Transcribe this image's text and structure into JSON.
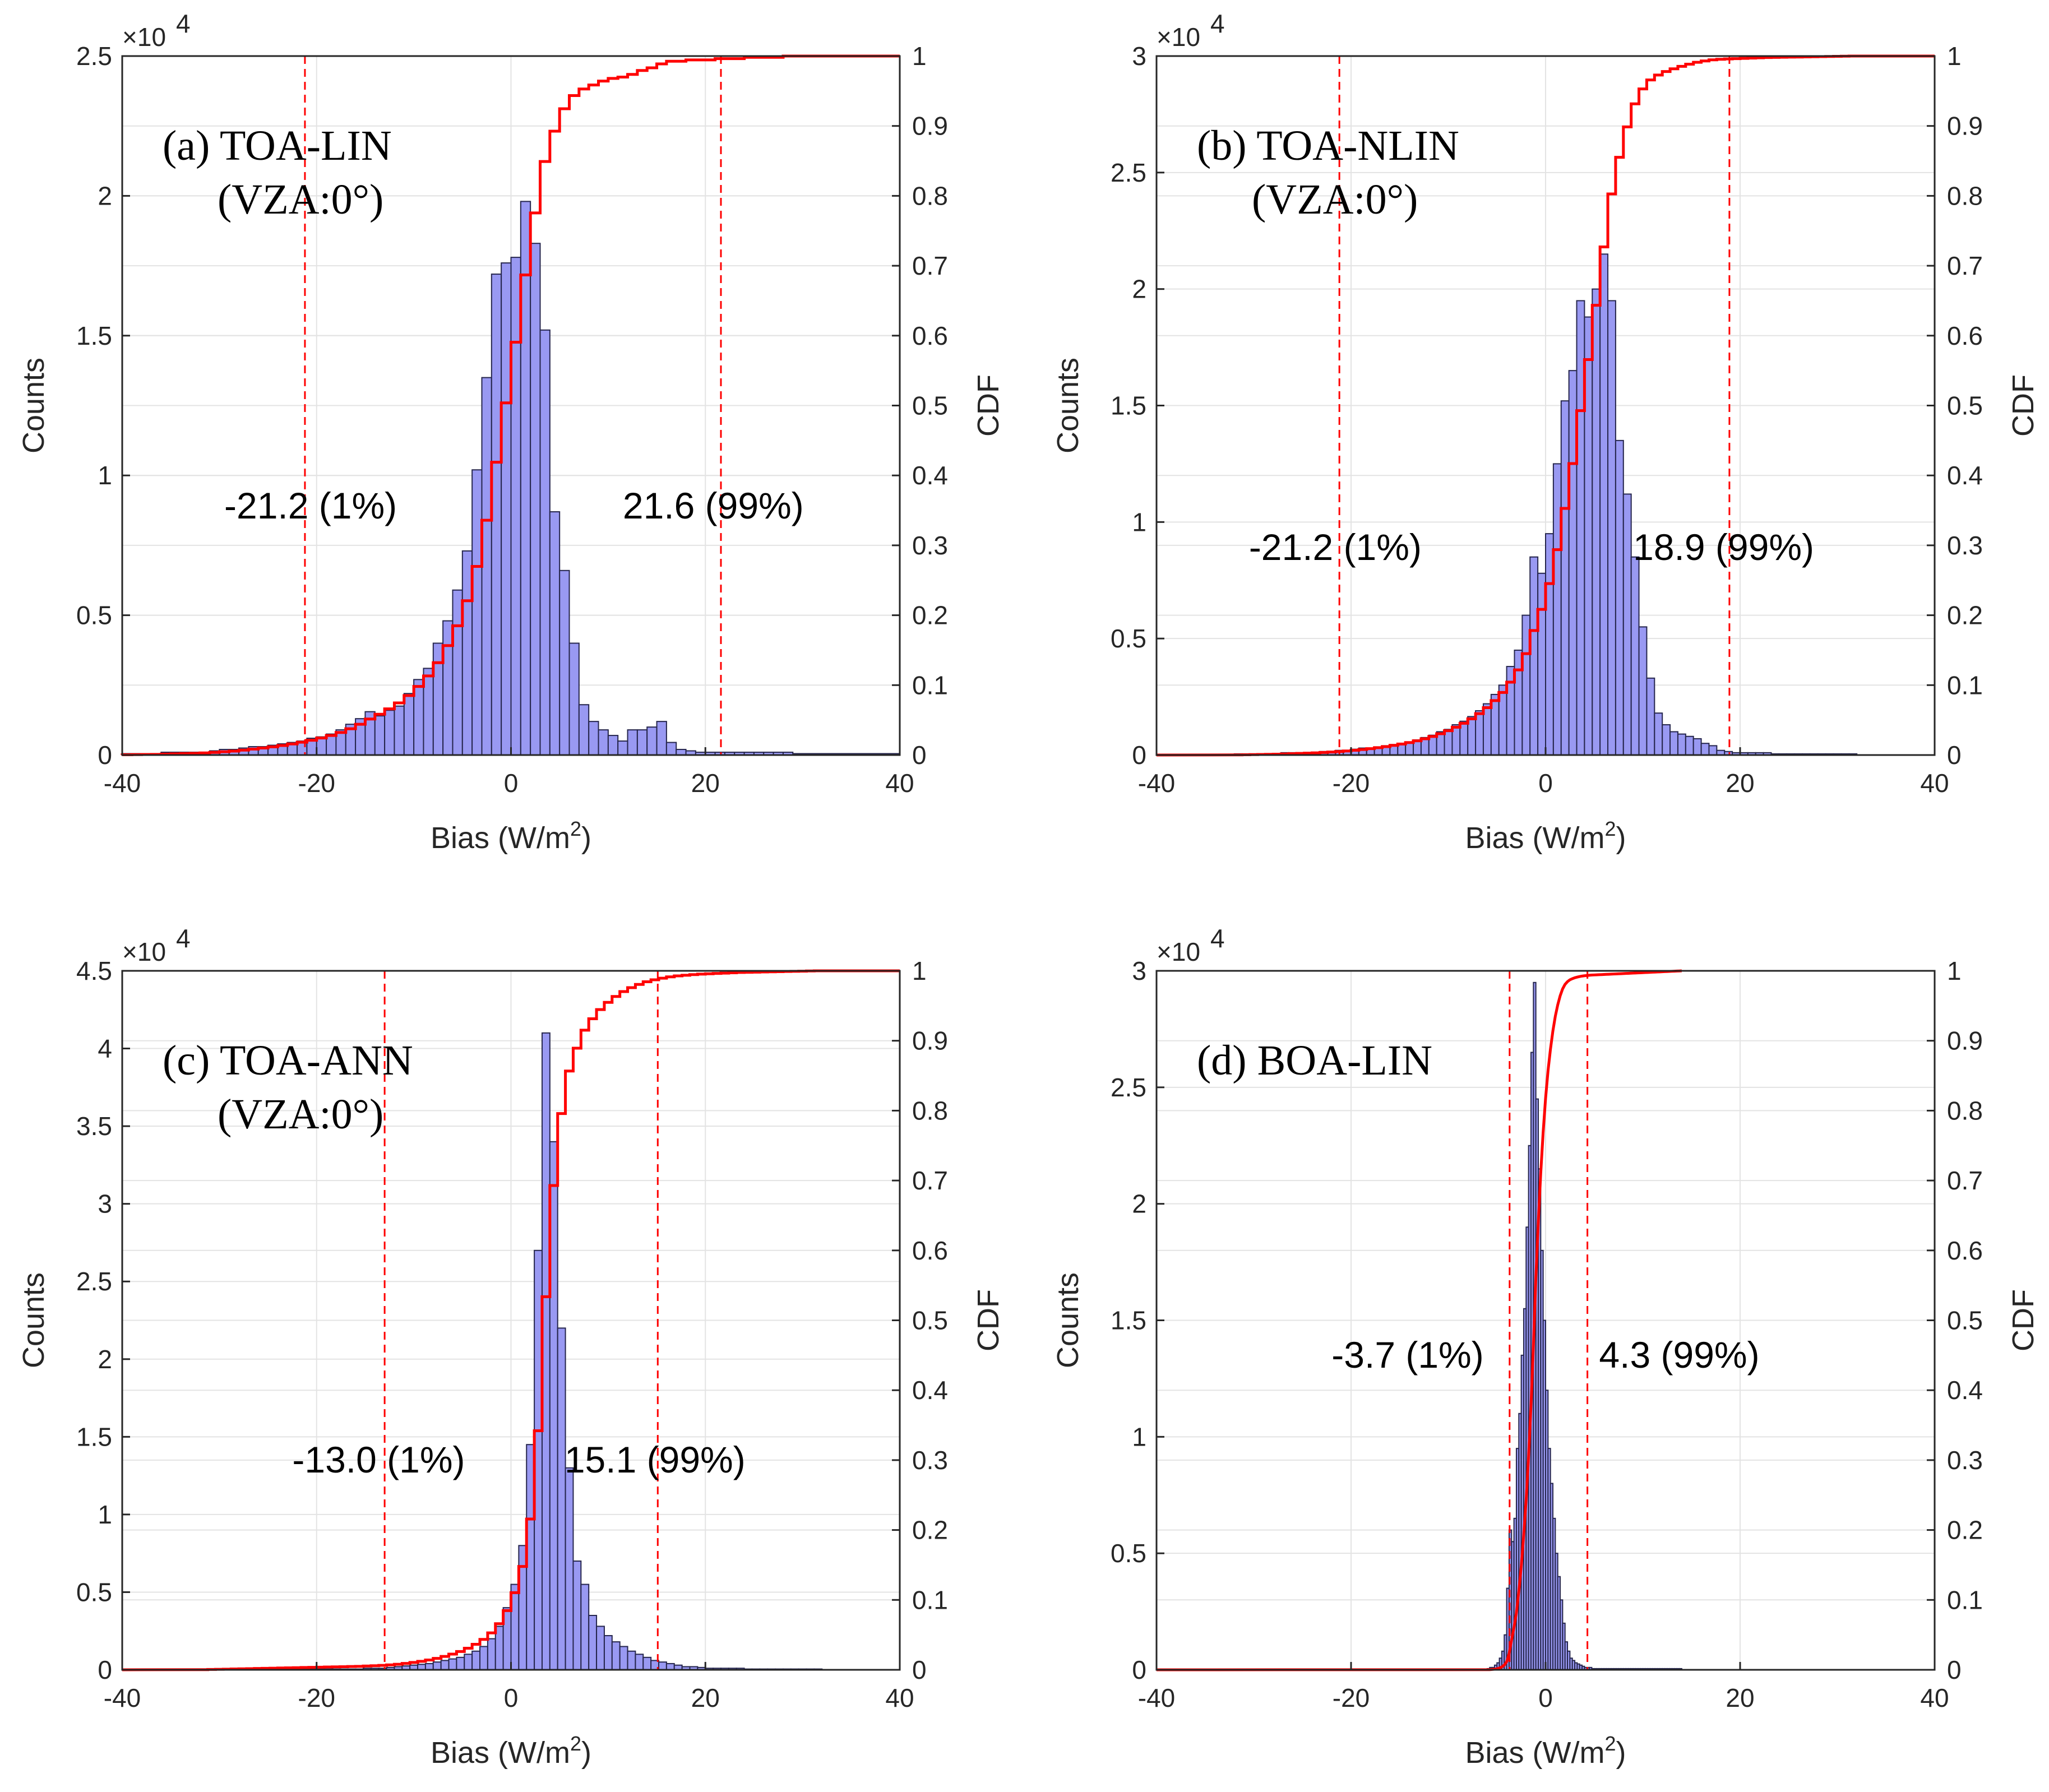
{
  "colors": {
    "bar_fill": "#9999f2",
    "bar_edge": "#26264d",
    "cdf": "#ff0000",
    "grid": "#e3e3e3",
    "axis": "#262626"
  },
  "chart_data": [
    {
      "type": "bar",
      "panel_title": [
        "(a) TOA-LIN",
        "(VZA:0°)"
      ],
      "xlabel": "Bias (W/m",
      "xlabel_sup": "2",
      "xlabel_close": ")",
      "ylabel": "Counts",
      "y2label": "CDF",
      "exponent_base": "×10",
      "exponent_power": "4",
      "xlim": [
        -40,
        40
      ],
      "xticks": [
        -40,
        -20,
        0,
        20,
        40
      ],
      "ylim": [
        0,
        2.5
      ],
      "yticks": [
        0,
        0.5,
        1,
        1.5,
        2,
        2.5
      ],
      "y2lim": [
        0,
        1
      ],
      "y2ticks": [
        0,
        0.1,
        0.2,
        0.3,
        0.4,
        0.5,
        0.6,
        0.7,
        0.8,
        0.9,
        1
      ],
      "bin_width": 1,
      "bin_centers": [
        -40.5,
        -39.5,
        -38.5,
        -37.5,
        -36.5,
        -35.5,
        -34.5,
        -33.5,
        -32.5,
        -31.5,
        -30.5,
        -29.5,
        -28.5,
        -27.5,
        -26.5,
        -25.5,
        -24.5,
        -23.5,
        -22.5,
        -21.5,
        -20.5,
        -19.5,
        -18.5,
        -17.5,
        -16.5,
        -15.5,
        -14.5,
        -13.5,
        -12.5,
        -11.5,
        -10.5,
        -9.5,
        -8.5,
        -7.5,
        -6.5,
        -5.5,
        -4.5,
        -3.5,
        -2.5,
        -1.5,
        -0.5,
        0.5,
        1.5,
        2.5,
        3.5,
        4.5,
        5.5,
        6.5,
        7.5,
        8.5,
        9.5,
        10.5,
        11.5,
        12.5,
        13.5,
        14.5,
        15.5,
        16.5,
        17.5,
        18.5,
        19.5,
        20.5,
        21.5,
        22.5,
        23.5,
        24.5,
        25.5,
        26.5,
        27.5,
        28.5,
        29.5,
        30.5,
        31.5,
        32.5,
        33.5,
        34.5,
        35.5,
        36.5,
        37.5,
        38.5,
        39.5
      ],
      "counts": [
        0.005,
        0.005,
        0.005,
        0.005,
        0.005,
        0.01,
        0.01,
        0.01,
        0.01,
        0.01,
        0.015,
        0.02,
        0.02,
        0.025,
        0.03,
        0.03,
        0.035,
        0.04,
        0.045,
        0.05,
        0.06,
        0.065,
        0.075,
        0.09,
        0.11,
        0.13,
        0.155,
        0.14,
        0.16,
        0.175,
        0.22,
        0.27,
        0.31,
        0.4,
        0.48,
        0.59,
        0.73,
        1.02,
        1.35,
        1.72,
        1.76,
        1.78,
        1.98,
        1.83,
        1.52,
        0.87,
        0.66,
        0.4,
        0.18,
        0.12,
        0.09,
        0.07,
        0.05,
        0.09,
        0.09,
        0.1,
        0.12,
        0.045,
        0.02,
        0.015,
        0.01,
        0.01,
        0.01,
        0.01,
        0.01,
        0.01,
        0.01,
        0.01,
        0.01,
        0.01,
        0.005,
        0.005,
        0.005,
        0.005,
        0.005,
        0.005,
        0.005,
        0.005,
        0.005,
        0.005,
        0.005
      ],
      "cdf": [
        0.0001,
        0.0002,
        0.0003,
        0.0004,
        0.0005,
        0.0007,
        0.0009,
        0.0011,
        0.0013,
        0.0016,
        0.002,
        0.0025,
        0.003,
        0.0037,
        0.0045,
        0.0053,
        0.0062,
        0.0072,
        0.0084,
        0.0097,
        0.0112,
        0.0129,
        0.0148,
        0.0171,
        0.0199,
        0.0233,
        0.0273,
        0.0309,
        0.035,
        0.0395,
        0.0451,
        0.052,
        0.06,
        0.07,
        0.083,
        0.098,
        0.117,
        0.143,
        0.178,
        0.222,
        0.267,
        0.313,
        0.364,
        0.411,
        0.45,
        0.473,
        0.49,
        0.5,
        0.505,
        0.508,
        0.511,
        0.513,
        0.514,
        0.516,
        0.519,
        0.521,
        0.524,
        0.526,
        0.526,
        0.527,
        0.527,
        0.527,
        0.528,
        0.528,
        0.528,
        0.529,
        0.529,
        0.529,
        0.529,
        0.53,
        0.53,
        0.53,
        0.53,
        0.53,
        0.53,
        0.53,
        0.53,
        0.53,
        0.53,
        0.53,
        0.53
      ],
      "cdf_scale": 1.887,
      "vlines": [
        -21.2,
        21.6
      ],
      "annotations": [
        {
          "text": "-21.2 (1%)",
          "x": -29.5,
          "y": 0.89
        },
        {
          "text": "21.6 (99%)",
          "x": 11.5,
          "y": 0.89
        }
      ]
    },
    {
      "type": "bar",
      "panel_title": [
        "(b) TOA-NLIN",
        "(VZA:0°)"
      ],
      "xlabel": "Bias (W/m",
      "xlabel_sup": "2",
      "xlabel_close": ")",
      "ylabel": "Counts",
      "y2label": "CDF",
      "exponent_base": "×10",
      "exponent_power": "4",
      "xlim": [
        -40,
        40
      ],
      "xticks": [
        -40,
        -20,
        0,
        20,
        40
      ],
      "ylim": [
        0,
        3
      ],
      "yticks": [
        0,
        0.5,
        1,
        1.5,
        2,
        2.5,
        3
      ],
      "y2lim": [
        0,
        1
      ],
      "y2ticks": [
        0,
        0.1,
        0.2,
        0.3,
        0.4,
        0.5,
        0.6,
        0.7,
        0.8,
        0.9,
        1
      ],
      "bin_width": 0.8,
      "bin_centers": [],
      "counts": [
        0.005,
        0.005,
        0.005,
        0.005,
        0.005,
        0.005,
        0.01,
        0.01,
        0.01,
        0.01,
        0.01,
        0.015,
        0.015,
        0.02,
        0.02,
        0.025,
        0.03,
        0.03,
        0.035,
        0.04,
        0.045,
        0.05,
        0.055,
        0.065,
        0.075,
        0.085,
        0.1,
        0.11,
        0.13,
        0.145,
        0.165,
        0.19,
        0.22,
        0.26,
        0.3,
        0.38,
        0.45,
        0.6,
        0.85,
        0.78,
        0.95,
        1.25,
        1.52,
        1.65,
        1.95,
        1.88,
        2.0,
        2.15,
        1.95,
        1.35,
        1.12,
        0.85,
        0.55,
        0.33,
        0.18,
        0.13,
        0.1,
        0.09,
        0.08,
        0.07,
        0.05,
        0.04,
        0.02,
        0.015,
        0.01,
        0.01,
        0.01,
        0.01,
        0.01,
        0.005,
        0.005,
        0.005,
        0.005,
        0.005,
        0.005,
        0.005,
        0.005,
        0.005,
        0.005,
        0.005
      ],
      "cdf_mode": "cumsum",
      "vlines": [
        -21.2,
        18.9
      ],
      "annotations": [
        {
          "text": "-21.2 (1%)",
          "x": -30.5,
          "y": 0.89
        },
        {
          "text": "18.9 (99%)",
          "x": 9.0,
          "y": 0.89
        }
      ]
    },
    {
      "type": "bar",
      "panel_title": [
        "(c) TOA-ANN",
        "(VZA:0°)"
      ],
      "xlabel": "Bias (W/m",
      "xlabel_sup": "2",
      "xlabel_close": ")",
      "ylabel": "Counts",
      "y2label": "CDF",
      "exponent_base": "×10",
      "exponent_power": "4",
      "xlim": [
        -40,
        40
      ],
      "xticks": [
        -40,
        -20,
        0,
        20,
        40
      ],
      "ylim": [
        0,
        4.5
      ],
      "yticks": [
        0,
        0.5,
        1,
        1.5,
        2,
        2.5,
        3,
        3.5,
        4,
        4.5
      ],
      "y2lim": [
        0,
        1
      ],
      "y2ticks": [
        0,
        0.1,
        0.2,
        0.3,
        0.4,
        0.5,
        0.6,
        0.7,
        0.8,
        0.9,
        1
      ],
      "bin_width": 0.8,
      "counts": [
        0.005,
        0.005,
        0.005,
        0.005,
        0.005,
        0.005,
        0.005,
        0.005,
        0.005,
        0.005,
        0.005,
        0.005,
        0.005,
        0.005,
        0.005,
        0.005,
        0.005,
        0.005,
        0.005,
        0.005,
        0.005,
        0.01,
        0.01,
        0.01,
        0.015,
        0.02,
        0.025,
        0.03,
        0.035,
        0.04,
        0.05,
        0.06,
        0.07,
        0.08,
        0.1,
        0.12,
        0.15,
        0.2,
        0.28,
        0.4,
        0.55,
        0.8,
        1.45,
        2.7,
        4.1,
        3.4,
        2.2,
        1.3,
        0.7,
        0.55,
        0.35,
        0.28,
        0.22,
        0.18,
        0.15,
        0.12,
        0.1,
        0.08,
        0.06,
        0.05,
        0.04,
        0.03,
        0.02,
        0.02,
        0.015,
        0.01,
        0.01,
        0.01,
        0.01,
        0.01,
        0.005,
        0.005,
        0.005,
        0.005,
        0.005,
        0.005,
        0.005,
        0.005,
        0.005,
        0.005
      ],
      "cdf_mode": "cumsum",
      "vlines": [
        -13.0,
        15.1
      ],
      "annotations": [
        {
          "text": "-13.0 (1%)",
          "x": -22.5,
          "y": 1.35
        },
        {
          "text": "15.1 (99%)",
          "x": 5.5,
          "y": 1.35
        }
      ]
    },
    {
      "type": "bar",
      "panel_title": [
        "(d) BOA-LIN"
      ],
      "xlabel": "Bias (W/m",
      "xlabel_sup": "2",
      "xlabel_close": ")",
      "ylabel": "Counts",
      "y2label": "CDF",
      "exponent_base": "×10",
      "exponent_power": "4",
      "xlim": [
        -40,
        40
      ],
      "xticks": [
        -40,
        -20,
        0,
        20,
        40
      ],
      "ylim": [
        0,
        3
      ],
      "yticks": [
        0,
        0.5,
        1,
        1.5,
        2,
        2.5,
        3
      ],
      "y2lim": [
        0,
        1
      ],
      "y2ticks": [
        0,
        0.1,
        0.2,
        0.3,
        0.4,
        0.5,
        0.6,
        0.7,
        0.8,
        0.9,
        1
      ],
      "bin_width": 0.25,
      "bin_start": -6,
      "counts": [
        0.005,
        0.01,
        0.01,
        0.02,
        0.03,
        0.05,
        0.08,
        0.15,
        0.35,
        0.6,
        0.55,
        0.65,
        0.95,
        1.1,
        1.35,
        1.55,
        1.9,
        2.25,
        2.65,
        2.95,
        2.45,
        2.15,
        1.8,
        1.5,
        1.2,
        0.95,
        0.8,
        0.65,
        0.5,
        0.4,
        0.3,
        0.2,
        0.12,
        0.08,
        0.05,
        0.04,
        0.03,
        0.025,
        0.02,
        0.015,
        0.01,
        0.01,
        0.01,
        0.005,
        0.005,
        0.005,
        0.005,
        0.005,
        0.005,
        0.005,
        0.005,
        0.005,
        0.005,
        0.005,
        0.005,
        0.005,
        0.005,
        0.005,
        0.005,
        0.005,
        0.005,
        0.005,
        0.005,
        0.005,
        0.005,
        0.005,
        0.005,
        0.005,
        0.005,
        0.005,
        0.005,
        0.005,
        0.005,
        0.005,
        0.005,
        0.005,
        0.005,
        0.005,
        0.005,
        0.005
      ],
      "cdf_mode": "cumsum",
      "cdf_smooth": true,
      "vlines": [
        -3.7,
        4.3
      ],
      "annotations": [
        {
          "text": "-3.7 (1%)",
          "x": -22.0,
          "y": 1.35
        },
        {
          "text": "4.3 (99%)",
          "x": 5.5,
          "y": 1.35
        }
      ]
    }
  ]
}
